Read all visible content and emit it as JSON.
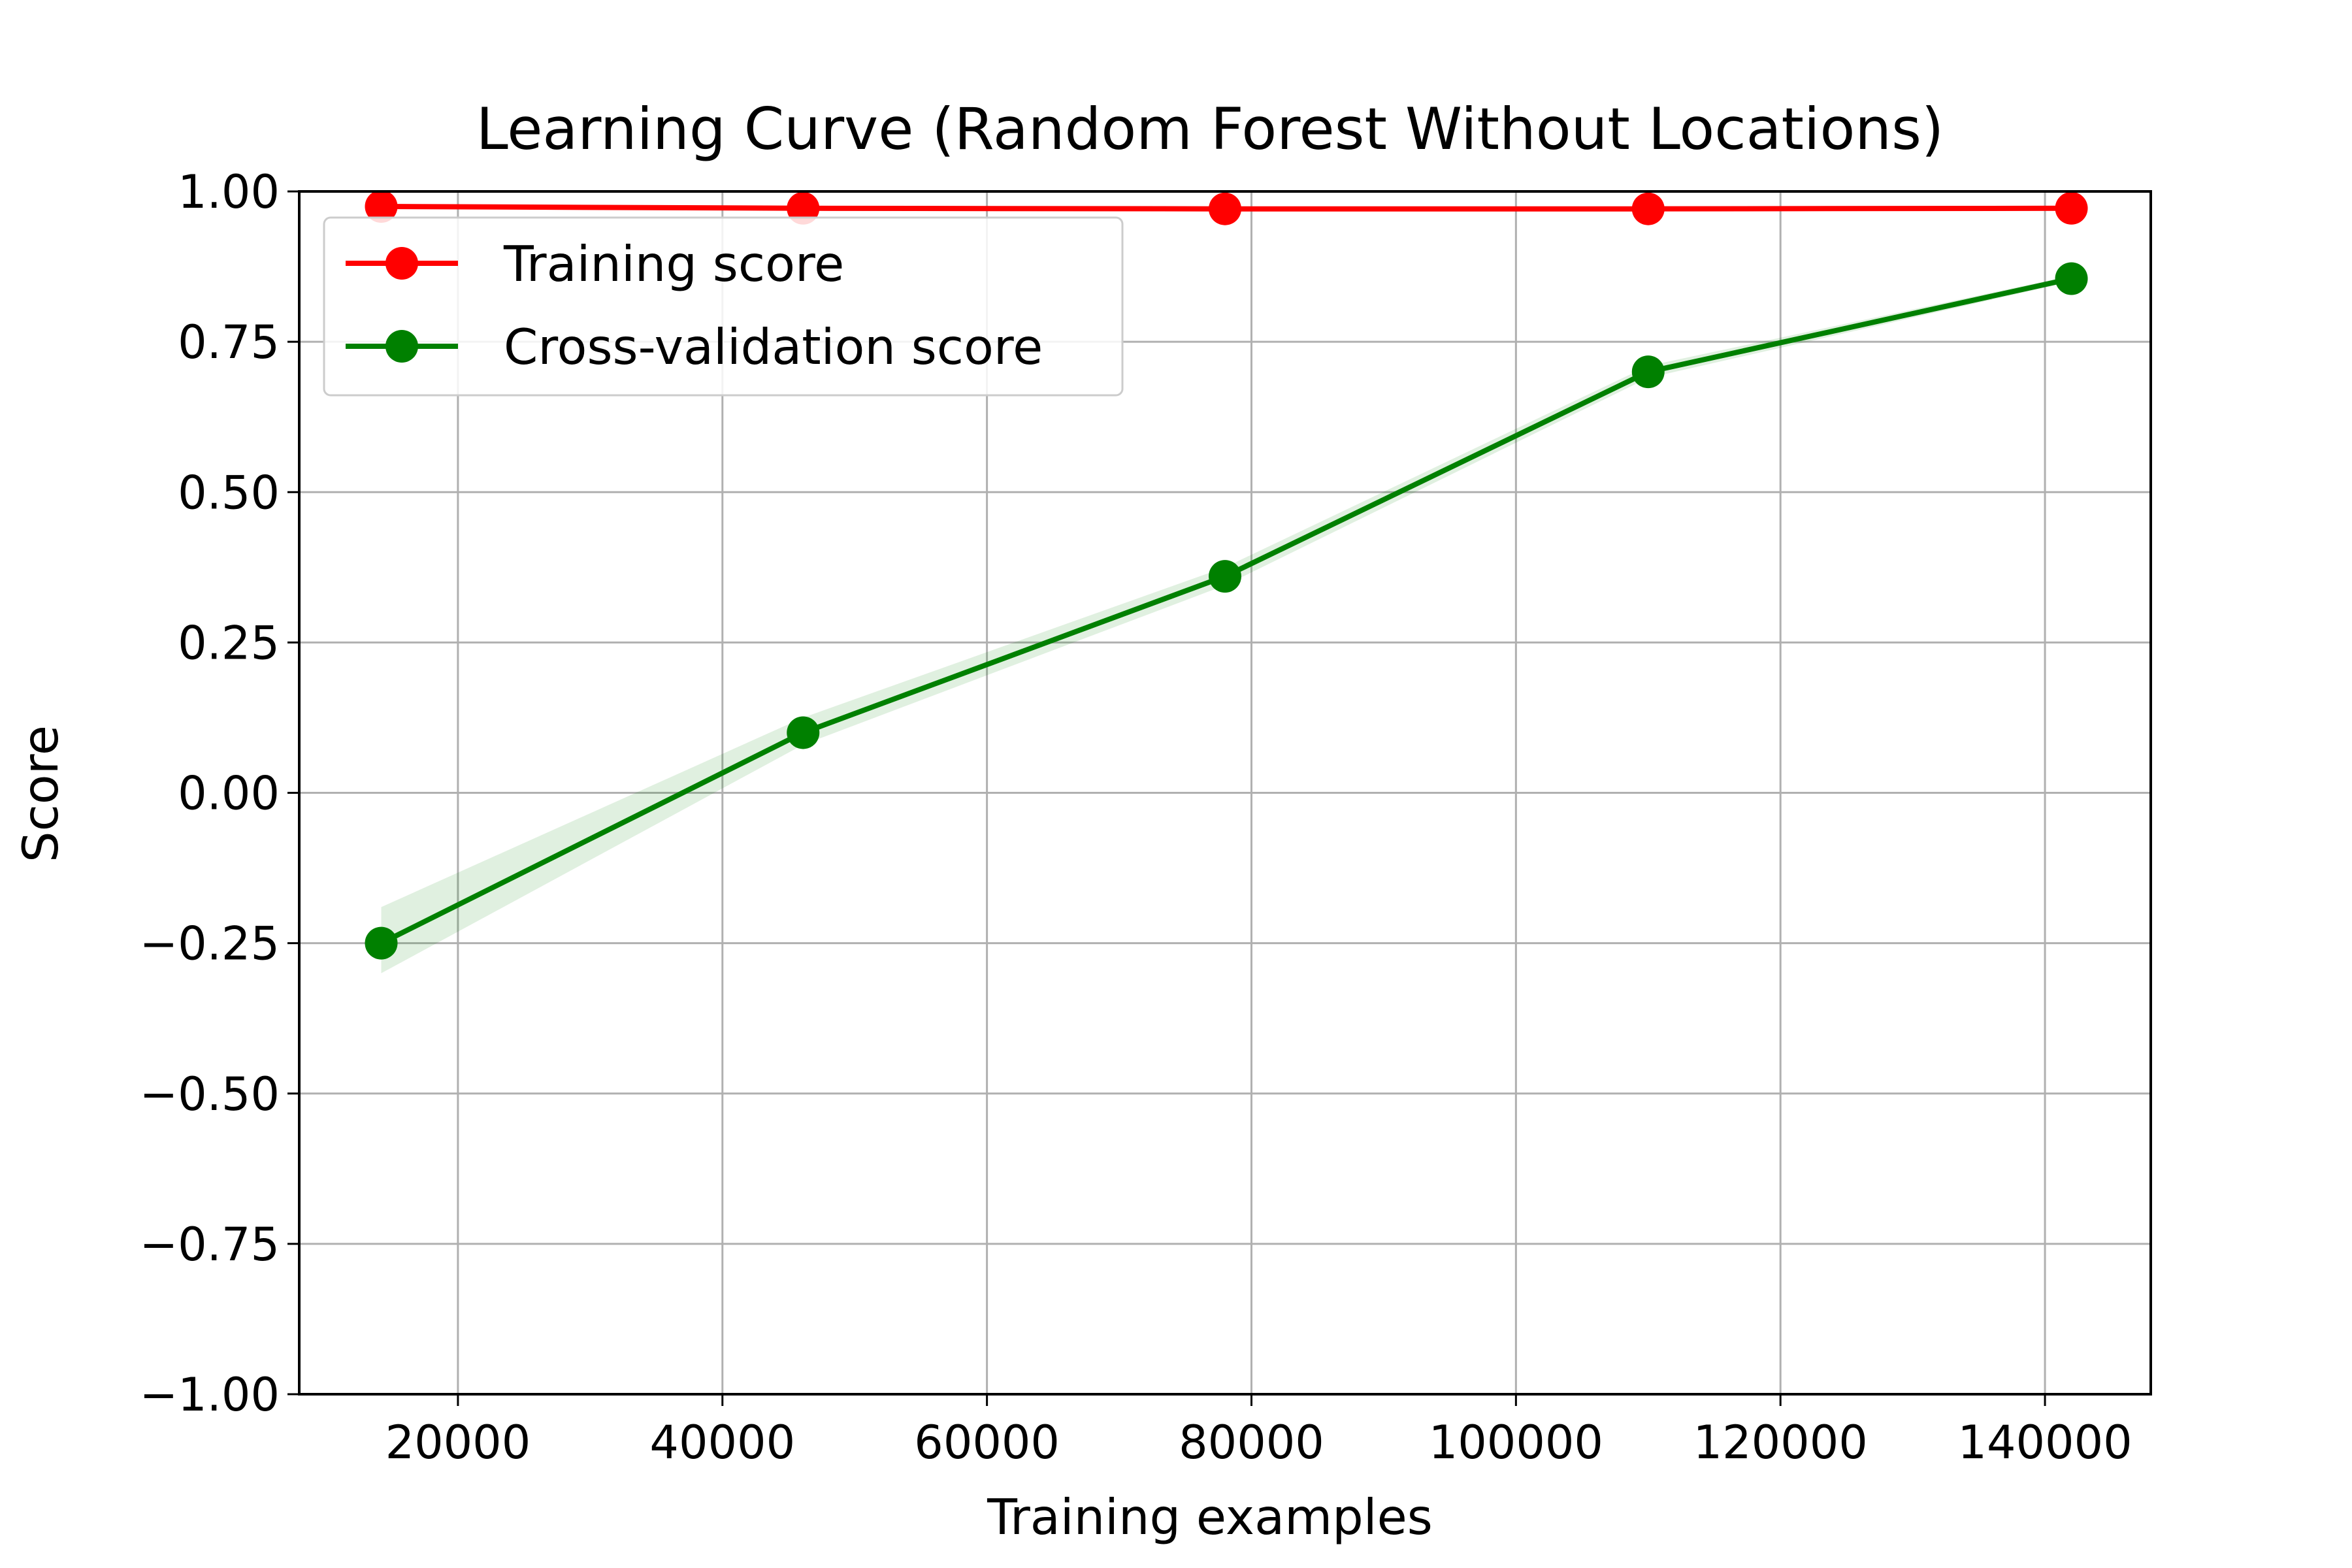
{
  "chart_data": {
    "type": "line",
    "title": "Learning Curve (Random Forest Without Locations)",
    "xlabel": "Training examples",
    "ylabel": "Score",
    "xlim": [
      8000,
      148000
    ],
    "ylim": [
      -1.0,
      1.0
    ],
    "xticks": [
      20000,
      40000,
      60000,
      80000,
      100000,
      120000,
      140000
    ],
    "xtick_labels": [
      "20000",
      "40000",
      "60000",
      "80000",
      "100000",
      "120000",
      "140000"
    ],
    "yticks": [
      1.0,
      0.75,
      0.5,
      0.25,
      0.0,
      -0.25,
      -0.5,
      -0.75,
      -1.0
    ],
    "ytick_labels": [
      "1.00",
      "0.75",
      "0.50",
      "0.25",
      "0.00",
      "−0.25",
      "−0.50",
      "−0.75",
      "−1.00"
    ],
    "grid": true,
    "legend_position": "top-left",
    "x": [
      14200,
      46100,
      78000,
      110000,
      142000
    ],
    "series": [
      {
        "name": "Training score",
        "color": "#ff0000",
        "values": [
          0.975,
          0.972,
          0.971,
          0.971,
          0.972
        ],
        "band_lower": [
          0.972,
          0.969,
          0.968,
          0.968,
          0.969
        ],
        "band_upper": [
          0.978,
          0.975,
          0.974,
          0.974,
          0.975
        ]
      },
      {
        "name": "Cross-validation score",
        "color": "#008000",
        "values": [
          -0.25,
          0.1,
          0.36,
          0.7,
          0.855
        ],
        "band_lower": [
          -0.3,
          0.08,
          0.345,
          0.69,
          0.85
        ],
        "band_upper": [
          -0.19,
          0.125,
          0.375,
          0.71,
          0.86
        ]
      }
    ]
  }
}
